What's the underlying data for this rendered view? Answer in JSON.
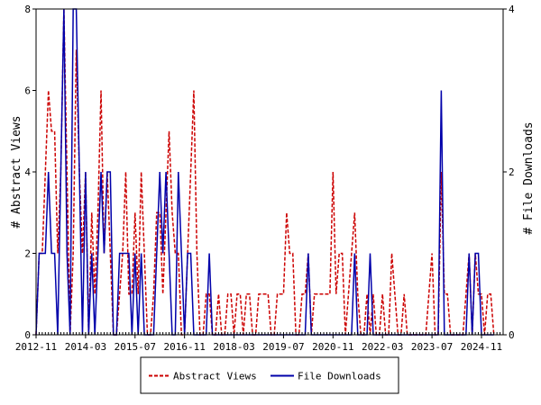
{
  "chart_data": {
    "type": "line",
    "title": "",
    "xlabel": "",
    "ylabel": "# Abstract Views",
    "ylabel_right": "# File Downloads",
    "xlim": [
      "2012-11",
      "2025-06"
    ],
    "ylim": [
      0,
      8
    ],
    "ylim_right": [
      0,
      4
    ],
    "x_tick_labels": [
      "2012-11",
      "2014-03",
      "2015-07",
      "2016-11",
      "2018-03",
      "2019-07",
      "2020-11",
      "2022-03",
      "2023-07",
      "2024-11"
    ],
    "y_tick_labels": [
      "0",
      "2",
      "4",
      "6",
      "8"
    ],
    "y_right_tick_labels": [
      "0",
      "2",
      "4"
    ],
    "legend_position": "bottom",
    "grid": false,
    "series": [
      {
        "name": "Abstract Views",
        "axis": "left",
        "color": "#cc0000",
        "style": "dashed",
        "points": [
          [
            "2012-11",
            0
          ],
          [
            "2012-12",
            2
          ],
          [
            "2013-01",
            2
          ],
          [
            "2013-02",
            4
          ],
          [
            "2013-03",
            6
          ],
          [
            "2013-04",
            5
          ],
          [
            "2013-05",
            5
          ],
          [
            "2013-06",
            2
          ],
          [
            "2013-07",
            4
          ],
          [
            "2013-08",
            8
          ],
          [
            "2013-09",
            4
          ],
          [
            "2013-10",
            0
          ],
          [
            "2013-11",
            2
          ],
          [
            "2013-12",
            7
          ],
          [
            "2014-01",
            4
          ],
          [
            "2014-02",
            2
          ],
          [
            "2014-03",
            4
          ],
          [
            "2014-04",
            0
          ],
          [
            "2014-05",
            3
          ],
          [
            "2014-06",
            1
          ],
          [
            "2014-07",
            3
          ],
          [
            "2014-08",
            6
          ],
          [
            "2014-09",
            2
          ],
          [
            "2014-10",
            4
          ],
          [
            "2014-11",
            2
          ],
          [
            "2014-12",
            0
          ],
          [
            "2015-01",
            0
          ],
          [
            "2015-02",
            1
          ],
          [
            "2015-03",
            2
          ],
          [
            "2015-04",
            4
          ],
          [
            "2015-05",
            1
          ],
          [
            "2015-06",
            1
          ],
          [
            "2015-07",
            3
          ],
          [
            "2015-08",
            1
          ],
          [
            "2015-09",
            4
          ],
          [
            "2015-10",
            2
          ],
          [
            "2015-11",
            0
          ],
          [
            "2015-12",
            0
          ],
          [
            "2016-01",
            1
          ],
          [
            "2016-02",
            3
          ],
          [
            "2016-03",
            3
          ],
          [
            "2016-04",
            1
          ],
          [
            "2016-05",
            3
          ],
          [
            "2016-06",
            5
          ],
          [
            "2016-07",
            3
          ],
          [
            "2016-08",
            2
          ],
          [
            "2016-09",
            2
          ],
          [
            "2016-10",
            0
          ],
          [
            "2016-11",
            0
          ],
          [
            "2016-12",
            2
          ],
          [
            "2017-01",
            4
          ],
          [
            "2017-02",
            6
          ],
          [
            "2017-03",
            2
          ],
          [
            "2017-04",
            0
          ],
          [
            "2017-05",
            0
          ],
          [
            "2017-06",
            1
          ],
          [
            "2017-07",
            1
          ],
          [
            "2017-08",
            0
          ],
          [
            "2017-09",
            0
          ],
          [
            "2017-10",
            1
          ],
          [
            "2017-11",
            0
          ],
          [
            "2017-12",
            0
          ],
          [
            "2018-01",
            1
          ],
          [
            "2018-02",
            1
          ],
          [
            "2018-03",
            0
          ],
          [
            "2018-04",
            1
          ],
          [
            "2018-05",
            1
          ],
          [
            "2018-06",
            0
          ],
          [
            "2018-07",
            1
          ],
          [
            "2018-08",
            1
          ],
          [
            "2018-09",
            0
          ],
          [
            "2018-10",
            0
          ],
          [
            "2018-11",
            1
          ],
          [
            "2018-12",
            1
          ],
          [
            "2019-01",
            1
          ],
          [
            "2019-02",
            1
          ],
          [
            "2019-03",
            0
          ],
          [
            "2019-04",
            0
          ],
          [
            "2019-05",
            1
          ],
          [
            "2019-06",
            1
          ],
          [
            "2019-07",
            1
          ],
          [
            "2019-08",
            3
          ],
          [
            "2019-09",
            2
          ],
          [
            "2019-10",
            2
          ],
          [
            "2019-11",
            0
          ],
          [
            "2019-12",
            0
          ],
          [
            "2020-01",
            1
          ],
          [
            "2020-02",
            1
          ],
          [
            "2020-03",
            2
          ],
          [
            "2020-04",
            0
          ],
          [
            "2020-05",
            1
          ],
          [
            "2020-06",
            1
          ],
          [
            "2020-07",
            1
          ],
          [
            "2020-08",
            1
          ],
          [
            "2020-09",
            1
          ],
          [
            "2020-10",
            1
          ],
          [
            "2020-11",
            4
          ],
          [
            "2020-12",
            1
          ],
          [
            "2021-01",
            2
          ],
          [
            "2021-02",
            2
          ],
          [
            "2021-03",
            0
          ],
          [
            "2021-04",
            1
          ],
          [
            "2021-05",
            2
          ],
          [
            "2021-06",
            3
          ],
          [
            "2021-07",
            1
          ],
          [
            "2021-08",
            0
          ],
          [
            "2021-09",
            0
          ],
          [
            "2021-10",
            1
          ],
          [
            "2021-11",
            0
          ],
          [
            "2021-12",
            1
          ],
          [
            "2022-01",
            0
          ],
          [
            "2022-02",
            0
          ],
          [
            "2022-03",
            1
          ],
          [
            "2022-04",
            0
          ],
          [
            "2022-05",
            0
          ],
          [
            "2022-06",
            2
          ],
          [
            "2022-07",
            1
          ],
          [
            "2022-08",
            0
          ],
          [
            "2022-09",
            0
          ],
          [
            "2022-10",
            1
          ],
          [
            "2022-11",
            0
          ],
          [
            "2022-12",
            0
          ],
          [
            "2023-01",
            0
          ],
          [
            "2023-02",
            0
          ],
          [
            "2023-03",
            0
          ],
          [
            "2023-04",
            0
          ],
          [
            "2023-05",
            0
          ],
          [
            "2023-06",
            1
          ],
          [
            "2023-07",
            2
          ],
          [
            "2023-08",
            0
          ],
          [
            "2023-09",
            0
          ],
          [
            "2023-10",
            4
          ],
          [
            "2023-11",
            1
          ],
          [
            "2023-12",
            1
          ],
          [
            "2024-01",
            0
          ],
          [
            "2024-02",
            0
          ],
          [
            "2024-03",
            0
          ],
          [
            "2024-04",
            0
          ],
          [
            "2024-05",
            0
          ],
          [
            "2024-06",
            1
          ],
          [
            "2024-07",
            2
          ],
          [
            "2024-08",
            0
          ],
          [
            "2024-09",
            2
          ],
          [
            "2024-10",
            1
          ],
          [
            "2024-11",
            1
          ],
          [
            "2024-12",
            0
          ],
          [
            "2025-01",
            1
          ],
          [
            "2025-02",
            1
          ],
          [
            "2025-03",
            0
          ]
        ]
      },
      {
        "name": "File Downloads",
        "axis": "right",
        "color": "#0000aa",
        "style": "solid",
        "points": [
          [
            "2012-11",
            0
          ],
          [
            "2012-12",
            1
          ],
          [
            "2013-01",
            1
          ],
          [
            "2013-02",
            1
          ],
          [
            "2013-03",
            2
          ],
          [
            "2013-04",
            1
          ],
          [
            "2013-05",
            1
          ],
          [
            "2013-06",
            0
          ],
          [
            "2013-07",
            2
          ],
          [
            "2013-08",
            4
          ],
          [
            "2013-09",
            1
          ],
          [
            "2013-10",
            0
          ],
          [
            "2013-11",
            4
          ],
          [
            "2013-12",
            4
          ],
          [
            "2014-01",
            2
          ],
          [
            "2014-02",
            0
          ],
          [
            "2014-03",
            2
          ],
          [
            "2014-04",
            0
          ],
          [
            "2014-05",
            1
          ],
          [
            "2014-06",
            0
          ],
          [
            "2014-07",
            1
          ],
          [
            "2014-08",
            2
          ],
          [
            "2014-09",
            1
          ],
          [
            "2014-10",
            2
          ],
          [
            "2014-11",
            2
          ],
          [
            "2014-12",
            0
          ],
          [
            "2015-01",
            0
          ],
          [
            "2015-02",
            1
          ],
          [
            "2015-03",
            1
          ],
          [
            "2015-04",
            1
          ],
          [
            "2015-05",
            1
          ],
          [
            "2015-06",
            0
          ],
          [
            "2015-07",
            1
          ],
          [
            "2015-08",
            0
          ],
          [
            "2015-09",
            1
          ],
          [
            "2015-10",
            0
          ],
          [
            "2015-11",
            0
          ],
          [
            "2015-12",
            0
          ],
          [
            "2016-01",
            0
          ],
          [
            "2016-02",
            1
          ],
          [
            "2016-03",
            2
          ],
          [
            "2016-04",
            1
          ],
          [
            "2016-05",
            2
          ],
          [
            "2016-06",
            1
          ],
          [
            "2016-07",
            0
          ],
          [
            "2016-08",
            0
          ],
          [
            "2016-09",
            2
          ],
          [
            "2016-10",
            1
          ],
          [
            "2016-11",
            0
          ],
          [
            "2016-12",
            1
          ],
          [
            "2017-01",
            1
          ],
          [
            "2017-02",
            0
          ],
          [
            "2017-03",
            0
          ],
          [
            "2017-04",
            0
          ],
          [
            "2017-05",
            0
          ],
          [
            "2017-06",
            0
          ],
          [
            "2017-07",
            1
          ],
          [
            "2017-08",
            0
          ],
          [
            "2017-09",
            0
          ],
          [
            "2017-10",
            0
          ],
          [
            "2017-11",
            0
          ],
          [
            "2017-12",
            0
          ],
          [
            "2018-01",
            0
          ],
          [
            "2018-02",
            0
          ],
          [
            "2018-03",
            0
          ],
          [
            "2018-04",
            0
          ],
          [
            "2018-05",
            0
          ],
          [
            "2018-06",
            0
          ],
          [
            "2018-07",
            0
          ],
          [
            "2018-08",
            0
          ],
          [
            "2018-09",
            0
          ],
          [
            "2018-10",
            0
          ],
          [
            "2018-11",
            0
          ],
          [
            "2018-12",
            0
          ],
          [
            "2019-01",
            0
          ],
          [
            "2019-02",
            0
          ],
          [
            "2019-03",
            0
          ],
          [
            "2019-04",
            0
          ],
          [
            "2019-05",
            0
          ],
          [
            "2019-06",
            0
          ],
          [
            "2019-07",
            0
          ],
          [
            "2019-08",
            0
          ],
          [
            "2019-09",
            0
          ],
          [
            "2019-10",
            0
          ],
          [
            "2019-11",
            0
          ],
          [
            "2019-12",
            0
          ],
          [
            "2020-01",
            0
          ],
          [
            "2020-02",
            0
          ],
          [
            "2020-03",
            1
          ],
          [
            "2020-04",
            0
          ],
          [
            "2020-05",
            0
          ],
          [
            "2020-06",
            0
          ],
          [
            "2020-07",
            0
          ],
          [
            "2020-08",
            0
          ],
          [
            "2020-09",
            0
          ],
          [
            "2020-10",
            0
          ],
          [
            "2020-11",
            0
          ],
          [
            "2020-12",
            0
          ],
          [
            "2021-01",
            0
          ],
          [
            "2021-02",
            0
          ],
          [
            "2021-03",
            0
          ],
          [
            "2021-04",
            0
          ],
          [
            "2021-05",
            0
          ],
          [
            "2021-06",
            1
          ],
          [
            "2021-07",
            0
          ],
          [
            "2021-08",
            0
          ],
          [
            "2021-09",
            0
          ],
          [
            "2021-10",
            0
          ],
          [
            "2021-11",
            1
          ],
          [
            "2021-12",
            0
          ],
          [
            "2022-01",
            0
          ],
          [
            "2022-02",
            0
          ],
          [
            "2022-03",
            0
          ],
          [
            "2022-04",
            0
          ],
          [
            "2022-05",
            0
          ],
          [
            "2022-06",
            0
          ],
          [
            "2022-07",
            0
          ],
          [
            "2022-08",
            0
          ],
          [
            "2022-09",
            0
          ],
          [
            "2022-10",
            0
          ],
          [
            "2022-11",
            0
          ],
          [
            "2022-12",
            0
          ],
          [
            "2023-01",
            0
          ],
          [
            "2023-02",
            0
          ],
          [
            "2023-03",
            0
          ],
          [
            "2023-04",
            0
          ],
          [
            "2023-05",
            0
          ],
          [
            "2023-06",
            0
          ],
          [
            "2023-07",
            0
          ],
          [
            "2023-08",
            0
          ],
          [
            "2023-09",
            0
          ],
          [
            "2023-10",
            3
          ],
          [
            "2023-11",
            0
          ],
          [
            "2023-12",
            0
          ],
          [
            "2024-01",
            0
          ],
          [
            "2024-02",
            0
          ],
          [
            "2024-03",
            0
          ],
          [
            "2024-04",
            0
          ],
          [
            "2024-05",
            0
          ],
          [
            "2024-06",
            0
          ],
          [
            "2024-07",
            1
          ],
          [
            "2024-08",
            0
          ],
          [
            "2024-09",
            1
          ],
          [
            "2024-10",
            1
          ],
          [
            "2024-11",
            0
          ],
          [
            "2024-12",
            0
          ],
          [
            "2025-01",
            0
          ],
          [
            "2025-02",
            0
          ],
          [
            "2025-03",
            0
          ]
        ]
      }
    ]
  }
}
